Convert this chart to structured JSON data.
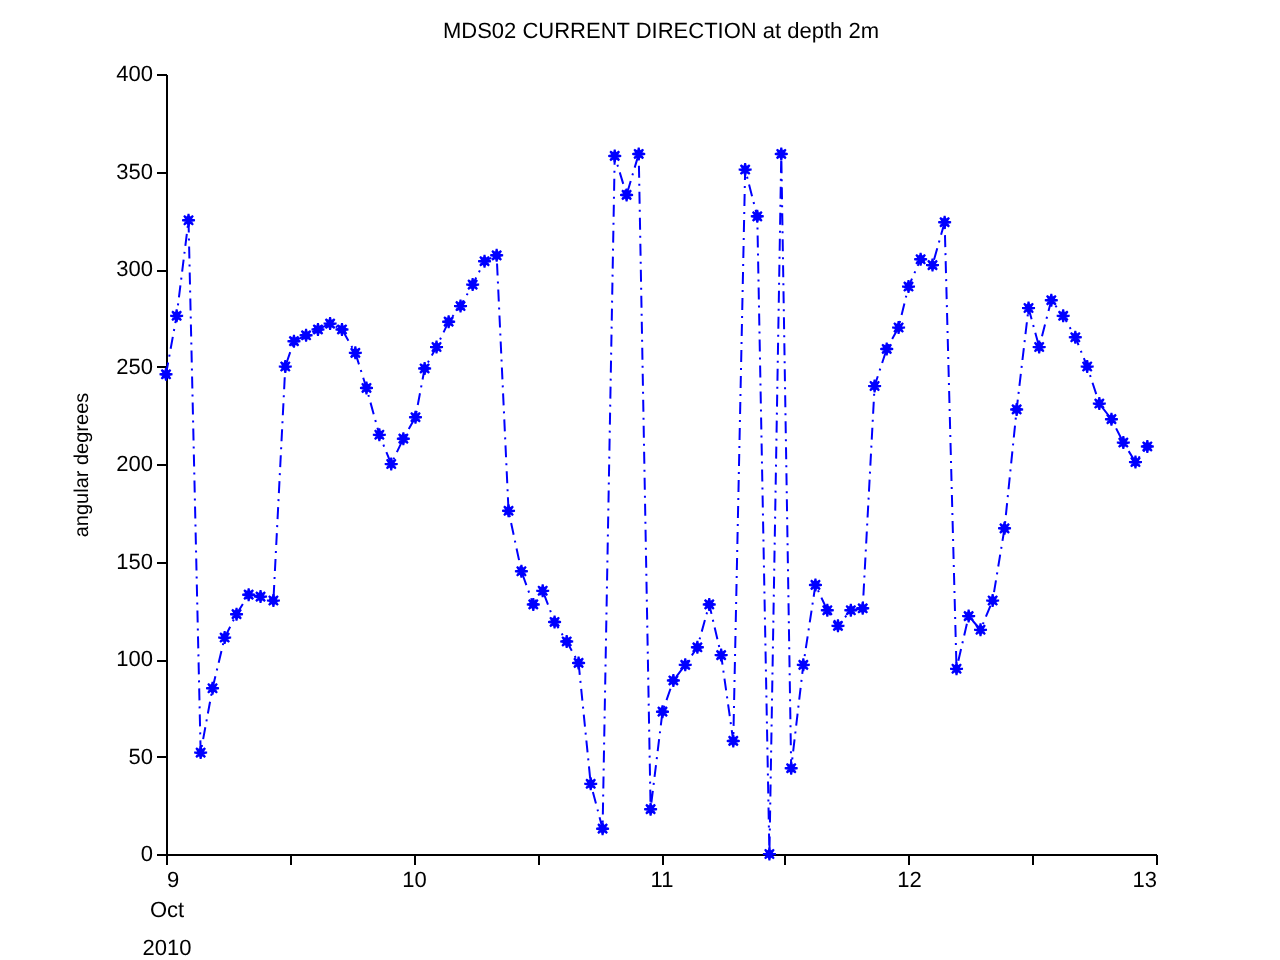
{
  "chart_data": {
    "type": "line",
    "title": "MDS02 CURRENT DIRECTION at depth 2m",
    "xlabel": "Oct 2010",
    "ylabel": "angular degrees",
    "marker": "star",
    "line_style": "dashed",
    "grid": false,
    "xlim": [
      9,
      13
    ],
    "xticks": [
      9,
      {
        "value": 9.5,
        "label": null
      },
      10,
      {
        "value": 10.5,
        "label": null
      },
      11,
      {
        "value": 11.5,
        "label": null
      },
      12,
      {
        "value": 12.5,
        "label": null
      },
      13
    ],
    "ylim": [
      0,
      400
    ],
    "yticks": [
      0,
      50,
      100,
      150,
      200,
      250,
      300,
      350,
      400
    ],
    "series": [
      {
        "color": "#0000ff",
        "x": [
          9.0,
          9.043,
          9.091,
          9.14,
          9.188,
          9.237,
          9.285,
          9.334,
          9.382,
          9.434,
          9.482,
          9.517,
          9.566,
          9.614,
          9.663,
          9.711,
          9.765,
          9.81,
          9.862,
          9.91,
          9.959,
          10.008,
          10.045,
          10.093,
          10.142,
          10.19,
          10.239,
          10.287,
          10.336,
          10.384,
          10.436,
          10.484,
          10.522,
          10.57,
          10.619,
          10.667,
          10.716,
          10.764,
          10.813,
          10.861,
          10.91,
          10.958,
          11.006,
          11.05,
          11.098,
          11.147,
          11.195,
          11.243,
          11.292,
          11.34,
          11.389,
          11.438,
          11.486,
          11.526,
          11.575,
          11.624,
          11.672,
          11.715,
          11.767,
          11.815,
          11.863,
          11.912,
          11.96,
          12.0,
          12.049,
          12.097,
          12.146,
          12.194,
          12.243,
          12.291,
          12.34,
          12.388,
          12.437,
          12.485,
          12.528,
          12.577,
          12.625,
          12.674,
          12.722,
          12.771,
          12.82,
          12.868,
          12.917,
          12.965
        ],
        "values": [
          246,
          276,
          325,
          52,
          85,
          111,
          123,
          133,
          132,
          130,
          250,
          263,
          266,
          269,
          272,
          269,
          257,
          239,
          215,
          200,
          213,
          224,
          249,
          260,
          273,
          281,
          292,
          304,
          307,
          176,
          145,
          128,
          135,
          119,
          109,
          98,
          36,
          13,
          358,
          338,
          359,
          23,
          73,
          89,
          97,
          106,
          128,
          102,
          58,
          351,
          327,
          0,
          359,
          44,
          97,
          138,
          125,
          117,
          125,
          126,
          240,
          259,
          270,
          291,
          305,
          302,
          324,
          95,
          122,
          115,
          130,
          167,
          228,
          280,
          260,
          284,
          276,
          265,
          250,
          231,
          223,
          211,
          201,
          209
        ]
      }
    ]
  }
}
